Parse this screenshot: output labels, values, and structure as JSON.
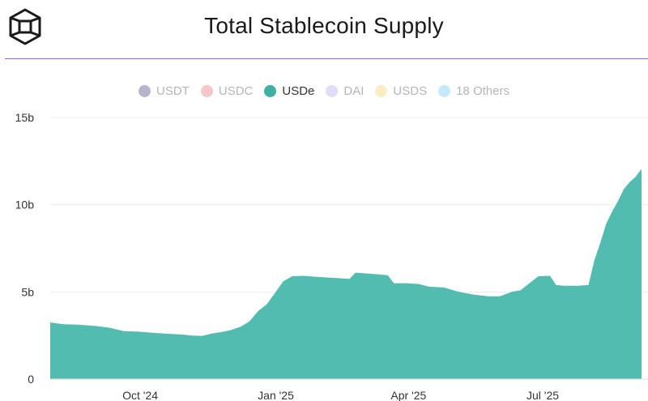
{
  "chart_data": {
    "type": "area",
    "title": "Total Stablecoin Supply",
    "xlabel": "",
    "ylabel": "",
    "legend_position": "top-center",
    "grid": true,
    "series": [
      {
        "name": "USDe",
        "color": "#52bcb1",
        "points": [
          [
            "2024-08-01",
            3.25
          ],
          [
            "2024-08-05",
            3.2
          ],
          [
            "2024-08-10",
            3.15
          ],
          [
            "2024-08-20",
            3.12
          ],
          [
            "2024-08-31",
            3.05
          ],
          [
            "2024-09-10",
            2.95
          ],
          [
            "2024-09-20",
            2.75
          ],
          [
            "2024-09-30",
            2.72
          ],
          [
            "2024-10-10",
            2.65
          ],
          [
            "2024-10-20",
            2.6
          ],
          [
            "2024-10-31",
            2.55
          ],
          [
            "2024-11-05",
            2.5
          ],
          [
            "2024-11-12",
            2.48
          ],
          [
            "2024-11-18",
            2.6
          ],
          [
            "2024-11-25",
            2.7
          ],
          [
            "2024-12-01",
            2.8
          ],
          [
            "2024-12-08",
            3.0
          ],
          [
            "2024-12-14",
            3.3
          ],
          [
            "2024-12-20",
            3.9
          ],
          [
            "2024-12-26",
            4.3
          ],
          [
            "2025-01-01",
            5.0
          ],
          [
            "2025-01-06",
            5.6
          ],
          [
            "2025-01-12",
            5.9
          ],
          [
            "2025-01-20",
            5.92
          ],
          [
            "2025-01-31",
            5.85
          ],
          [
            "2025-02-10",
            5.8
          ],
          [
            "2025-02-20",
            5.75
          ],
          [
            "2025-02-24",
            6.1
          ],
          [
            "2025-03-05",
            6.05
          ],
          [
            "2025-03-12",
            6.0
          ],
          [
            "2025-03-18",
            5.95
          ],
          [
            "2025-03-22",
            5.5
          ],
          [
            "2025-03-31",
            5.5
          ],
          [
            "2025-04-08",
            5.45
          ],
          [
            "2025-04-15",
            5.3
          ],
          [
            "2025-04-25",
            5.25
          ],
          [
            "2025-05-05",
            5.0
          ],
          [
            "2025-05-15",
            4.85
          ],
          [
            "2025-05-25",
            4.75
          ],
          [
            "2025-06-02",
            4.75
          ],
          [
            "2025-06-10",
            5.0
          ],
          [
            "2025-06-16",
            5.1
          ],
          [
            "2025-06-22",
            5.5
          ],
          [
            "2025-06-28",
            5.9
          ],
          [
            "2025-07-06",
            5.92
          ],
          [
            "2025-07-10",
            5.4
          ],
          [
            "2025-07-15",
            5.35
          ],
          [
            "2025-07-25",
            5.35
          ],
          [
            "2025-08-01",
            5.4
          ],
          [
            "2025-08-05",
            6.8
          ],
          [
            "2025-08-09",
            7.8
          ],
          [
            "2025-08-13",
            8.9
          ],
          [
            "2025-08-17",
            9.6
          ],
          [
            "2025-08-21",
            10.2
          ],
          [
            "2025-08-25",
            10.9
          ],
          [
            "2025-08-29",
            11.3
          ],
          [
            "2025-09-02",
            11.6
          ],
          [
            "2025-09-06",
            12.05
          ]
        ]
      }
    ],
    "legend": [
      {
        "label": "USDT",
        "color": "#b9b4cd",
        "active": false
      },
      {
        "label": "USDC",
        "color": "#f6c6cb",
        "active": false
      },
      {
        "label": "USDe",
        "color": "#3fb0a2",
        "active": true
      },
      {
        "label": "DAI",
        "color": "#e2dcf7",
        "active": false
      },
      {
        "label": "USDS",
        "color": "#fbeec4",
        "active": false
      },
      {
        "label": "18 Others",
        "color": "#c4e9f8",
        "active": false
      }
    ],
    "x_range": [
      "2024-08-01",
      "2025-09-06"
    ],
    "x_ticks": [
      {
        "date": "2024-10-01",
        "label": "Oct '24"
      },
      {
        "date": "2025-01-01",
        "label": "Jan '25"
      },
      {
        "date": "2025-04-01",
        "label": "Apr '25"
      },
      {
        "date": "2025-07-01",
        "label": "Jul '25"
      }
    ],
    "ylim": [
      0,
      15
    ],
    "y_ticks": [
      {
        "value": 0,
        "label": "0"
      },
      {
        "value": 5,
        "label": "5b"
      },
      {
        "value": 10,
        "label": "10b"
      },
      {
        "value": 15,
        "label": "15b"
      }
    ]
  }
}
